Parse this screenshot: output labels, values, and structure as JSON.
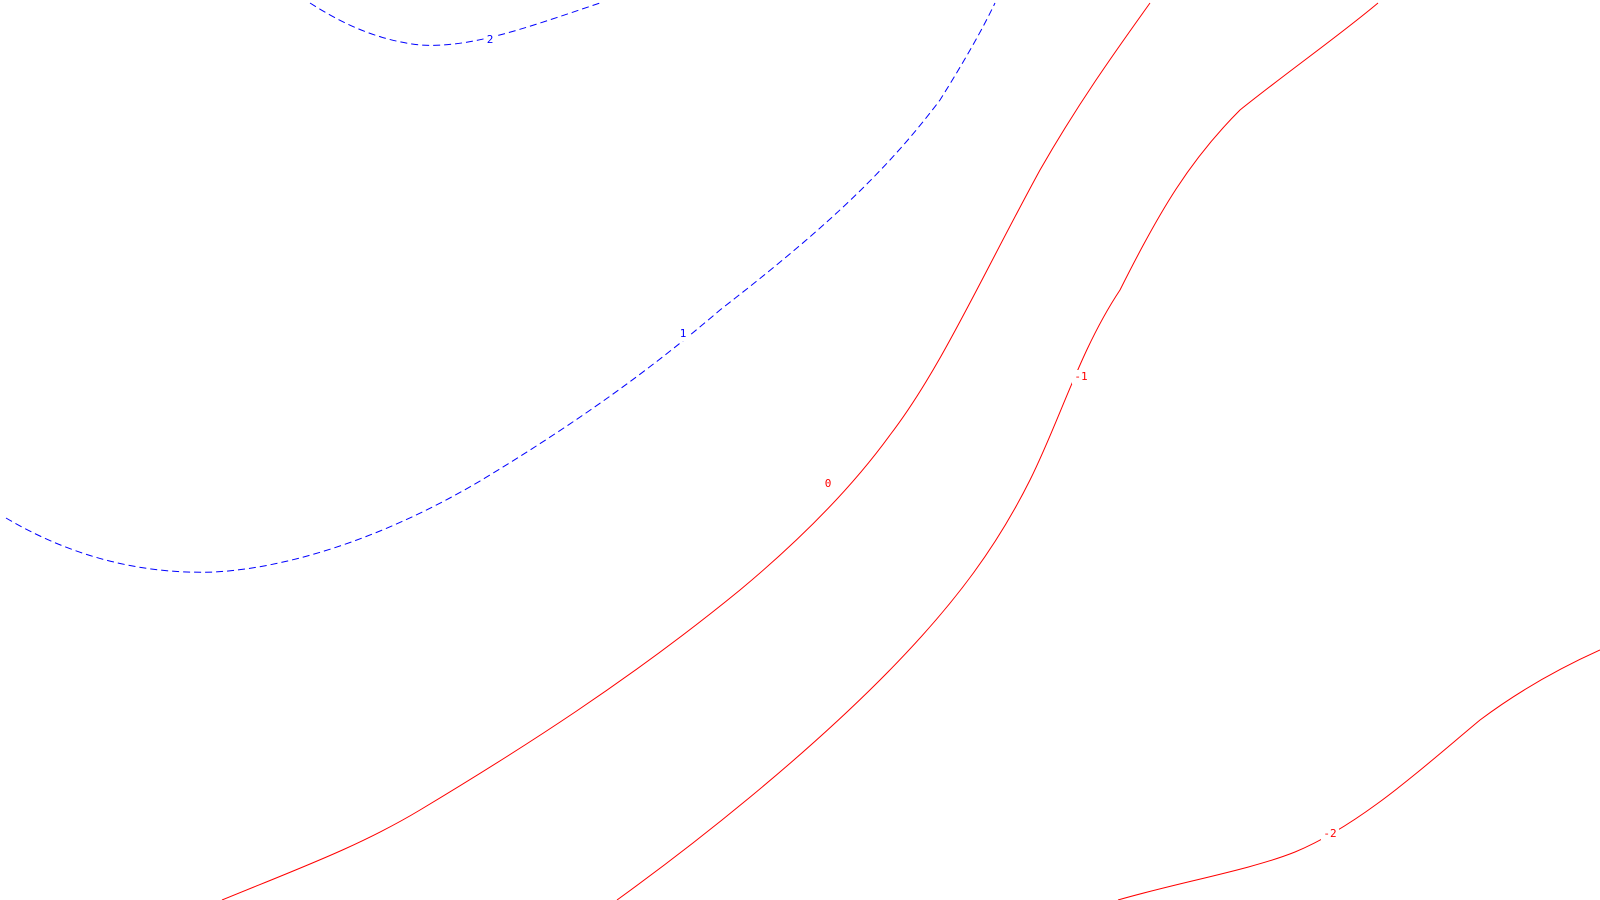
{
  "map": {
    "contours": [
      {
        "id": "contour-2",
        "label": "2",
        "level": 2,
        "sign": "positive",
        "style": "dashed",
        "color": "#0000ff"
      },
      {
        "id": "contour-1",
        "label": "1",
        "level": 1,
        "sign": "positive",
        "style": "dashed",
        "color": "#0000ff"
      },
      {
        "id": "contour-0",
        "label": "0",
        "level": 0,
        "sign": "zero",
        "style": "solid",
        "color": "#ff0000"
      },
      {
        "id": "contour-neg1",
        "label": "-1",
        "level": -1,
        "sign": "negative",
        "style": "solid",
        "color": "#ff0000"
      },
      {
        "id": "contour-neg2",
        "label": "-2",
        "level": -2,
        "sign": "negative",
        "style": "solid",
        "color": "#ff0000"
      }
    ]
  }
}
